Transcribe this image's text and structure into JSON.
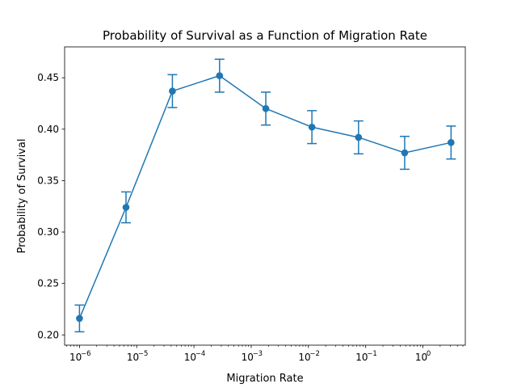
{
  "chart_data": {
    "type": "line",
    "title": "Probability of Survival as a Function of Migration Rate",
    "xlabel": "Migration Rate",
    "ylabel": "Probability of Survival",
    "xscale": "log",
    "xlim": [
      5.5e-07,
      5.5
    ],
    "ylim": [
      0.19,
      0.48
    ],
    "x_ticks": [
      {
        "value": 1e-06,
        "base": "10",
        "exp": "−6"
      },
      {
        "value": 1e-05,
        "base": "10",
        "exp": "−5"
      },
      {
        "value": 0.0001,
        "base": "10",
        "exp": "−4"
      },
      {
        "value": 0.001,
        "base": "10",
        "exp": "−3"
      },
      {
        "value": 0.01,
        "base": "10",
        "exp": "−2"
      },
      {
        "value": 0.1,
        "base": "10",
        "exp": "−1"
      },
      {
        "value": 1,
        "base": "10",
        "exp": "0"
      }
    ],
    "y_ticks": [
      {
        "value": 0.2,
        "label": "0.20"
      },
      {
        "value": 0.25,
        "label": "0.25"
      },
      {
        "value": 0.3,
        "label": "0.30"
      },
      {
        "value": 0.35,
        "label": "0.35"
      },
      {
        "value": 0.4,
        "label": "0.40"
      },
      {
        "value": 0.45,
        "label": "0.45"
      }
    ],
    "grid": false,
    "color": "#1f77b4",
    "series": [
      {
        "x": [
          1e-06,
          6.5e-06,
          4.2e-05,
          0.00028,
          0.0018,
          0.0115,
          0.075,
          0.48,
          3.1
        ],
        "y": [
          0.216,
          0.324,
          0.437,
          0.452,
          0.42,
          0.402,
          0.392,
          0.377,
          0.387
        ],
        "err_low": [
          0.203,
          0.309,
          0.421,
          0.436,
          0.404,
          0.386,
          0.376,
          0.361,
          0.371
        ],
        "err_high": [
          0.229,
          0.339,
          0.453,
          0.468,
          0.436,
          0.418,
          0.408,
          0.393,
          0.403
        ]
      }
    ]
  }
}
